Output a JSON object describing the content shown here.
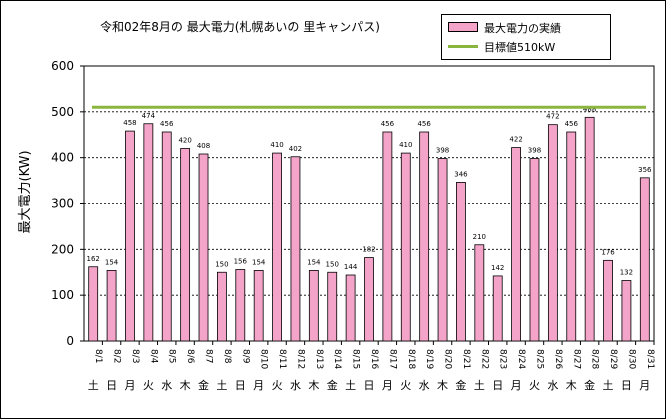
{
  "chart_data": {
    "type": "bar",
    "title": "令和02年8月の 最大電力(札幌あいの 里キャンパス)",
    "ylabel": "最大電力(KW)",
    "xlabel": "",
    "ylim": [
      0,
      600
    ],
    "yticks": [
      0,
      100,
      200,
      300,
      400,
      500,
      600
    ],
    "categories": [
      "8/1",
      "8/2",
      "8/3",
      "8/4",
      "8/5",
      "8/6",
      "8/7",
      "8/8",
      "8/9",
      "8/10",
      "8/11",
      "8/12",
      "8/13",
      "8/14",
      "8/15",
      "8/16",
      "8/17",
      "8/18",
      "8/19",
      "8/20",
      "8/21",
      "8/22",
      "8/23",
      "8/24",
      "8/25",
      "8/26",
      "8/27",
      "8/28",
      "8/29",
      "8/30",
      "8/31"
    ],
    "weekdays": [
      "土",
      "日",
      "月",
      "火",
      "水",
      "木",
      "金",
      "土",
      "日",
      "月",
      "火",
      "水",
      "木",
      "金",
      "土",
      "日",
      "月",
      "火",
      "水",
      "木",
      "金",
      "土",
      "日",
      "月",
      "火",
      "水",
      "木",
      "金",
      "土",
      "日",
      "月"
    ],
    "series": [
      {
        "name": "最大電力の実績",
        "values": [
          162,
          154,
          458,
          474,
          456,
          420,
          408,
          150,
          156,
          154,
          410,
          402,
          154,
          150,
          144,
          182,
          456,
          410,
          456,
          398,
          346,
          210,
          142,
          422,
          398,
          472,
          456,
          488,
          176,
          132,
          356
        ],
        "color": "#f4a4c9"
      }
    ],
    "target": {
      "name": "目標値510kW",
      "value": 510,
      "color": "#8ab53e"
    },
    "grid": true,
    "legend_position": "top-right"
  }
}
